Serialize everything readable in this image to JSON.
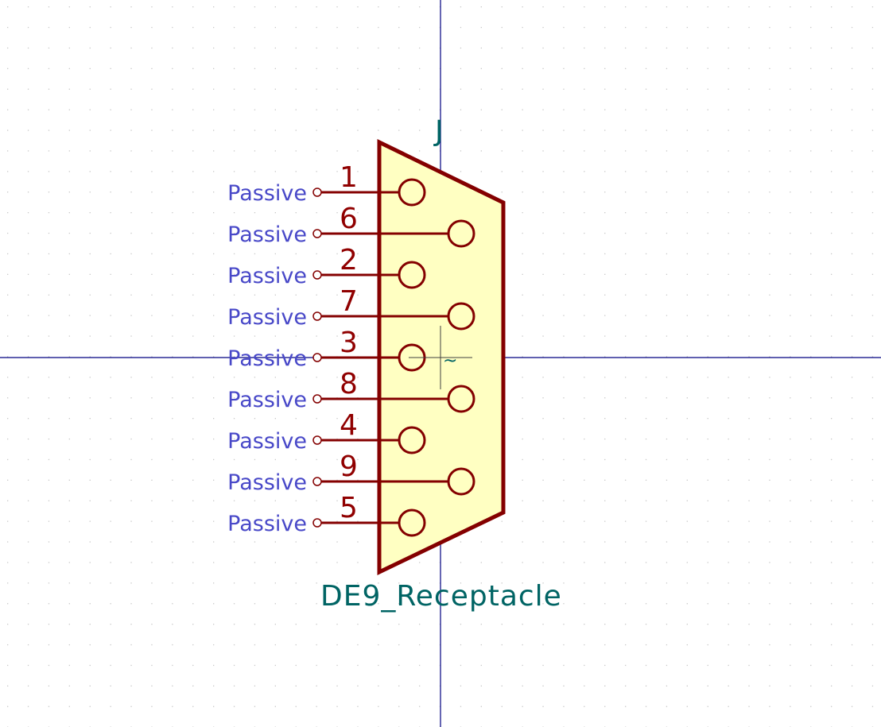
{
  "symbol": {
    "reference": "J",
    "value": "DE9_Receptacle",
    "anchor_mark": "~"
  },
  "pins": [
    {
      "number": "1",
      "type": "Passive"
    },
    {
      "number": "6",
      "type": "Passive"
    },
    {
      "number": "2",
      "type": "Passive"
    },
    {
      "number": "7",
      "type": "Passive"
    },
    {
      "number": "3",
      "type": "Passive"
    },
    {
      "number": "8",
      "type": "Passive"
    },
    {
      "number": "4",
      "type": "Passive"
    },
    {
      "number": "9",
      "type": "Passive"
    },
    {
      "number": "5",
      "type": "Passive"
    }
  ],
  "colors": {
    "background": "#ffffff",
    "grid_dot": "#c8c8c8",
    "axis": "#000080",
    "body_outline": "#840000",
    "body_fill": "#ffffc2",
    "pin_line": "#840000",
    "pin_number": "#900000",
    "pin_type": "#4848c8",
    "field_text": "#006464"
  }
}
